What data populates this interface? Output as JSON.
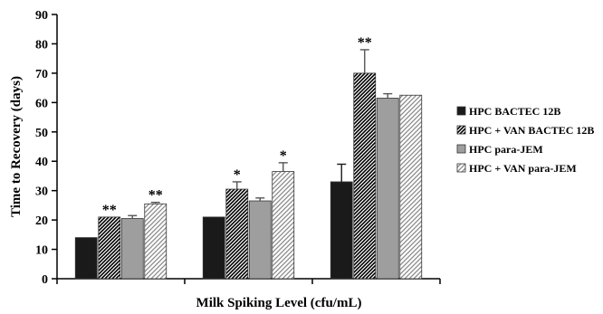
{
  "chart_data": {
    "type": "bar",
    "title": "",
    "xlabel": "Milk Spiking Level (cfu/mL)",
    "ylabel": "Time to Recovery (days)",
    "ylim": [
      0,
      90
    ],
    "yticks": [
      0,
      10,
      20,
      30,
      40,
      50,
      60,
      70,
      80,
      90
    ],
    "categories": [
      "",
      "",
      ""
    ],
    "grid": false,
    "legend_position": "right",
    "series": [
      {
        "name": "HPC BACTEC 12B",
        "pattern": "solid-black",
        "color": "#1a1a1a",
        "values": [
          14,
          21,
          33
        ],
        "errors": [
          0,
          0,
          6
        ],
        "significance": [
          "",
          "",
          ""
        ]
      },
      {
        "name": "HPC + VAN BACTEC 12B",
        "pattern": "diagonal-black",
        "color": "#000000",
        "values": [
          21,
          30.5,
          70
        ],
        "errors": [
          0,
          2.5,
          8
        ],
        "significance": [
          "**",
          "*",
          "**"
        ]
      },
      {
        "name": "HPC para-JEM",
        "pattern": "solid-gray",
        "color": "#9e9e9e",
        "values": [
          20.5,
          26.5,
          61.5
        ],
        "errors": [
          1,
          1,
          1.5
        ],
        "significance": [
          "",
          "",
          ""
        ]
      },
      {
        "name": "HPC + VAN para-JEM",
        "pattern": "diagonal-gray",
        "color": "#8a8a8a",
        "values": [
          25.5,
          36.5,
          62.5
        ],
        "errors": [
          0.5,
          3,
          0
        ],
        "significance": [
          "**",
          "*",
          ""
        ]
      }
    ]
  }
}
